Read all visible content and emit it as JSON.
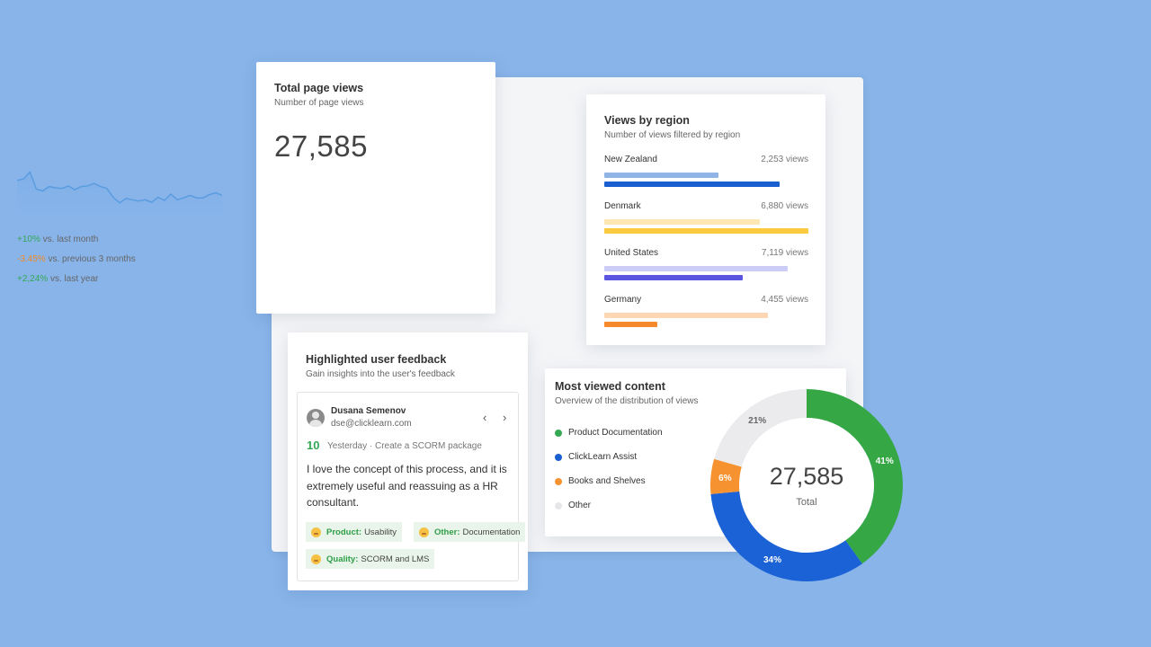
{
  "page_views": {
    "title": "Total page views",
    "subtitle": "Number of page views",
    "total": "27,585",
    "deltas": [
      {
        "value": "+10%",
        "label": "vs. last month",
        "trend": "up"
      },
      {
        "value": "-3.45%",
        "label": "vs. previous 3 months",
        "trend": "down"
      },
      {
        "value": "+2,24%",
        "label": "vs. last year",
        "trend": "up"
      }
    ],
    "sparkline": [
      62,
      64,
      75,
      48,
      45,
      52,
      50,
      49,
      53,
      47,
      52,
      53,
      57,
      52,
      49,
      35,
      26,
      33,
      31,
      29,
      31,
      27,
      35,
      30,
      40,
      31,
      34,
      38,
      34,
      34,
      39,
      42,
      38
    ]
  },
  "regions": {
    "title": "Views by region",
    "subtitle": "Number of views filtered by region",
    "items": [
      {
        "name": "New Zealand",
        "views": "2,253 views",
        "bar1": 0.56,
        "bar2": 0.86,
        "color_light": "#90b4e6",
        "color_dark": "#1a5fd0"
      },
      {
        "name": "Denmark",
        "views": "6,880 views",
        "bar1": 0.76,
        "bar2": 1.0,
        "color_light": "#fde8b3",
        "color_dark": "#fbca3e"
      },
      {
        "name": "United States",
        "views": "7,119 views",
        "bar1": 0.9,
        "bar2": 0.68,
        "color_light": "#cccdf6",
        "color_dark": "#5b55e0"
      },
      {
        "name": "Germany",
        "views": "4,455 views",
        "bar1": 0.8,
        "bar2": 0.26,
        "color_light": "#fdd7b3",
        "color_dark": "#f6892c"
      }
    ]
  },
  "feedback": {
    "title": "Highlighted user feedback",
    "subtitle": "Gain insights into the user's feedback",
    "user_name": "Dusana Semenov",
    "user_email": "dse@clicklearn.com",
    "score": "10",
    "meta": "Yesterday · Create a SCORM package",
    "text": "I love the concept of this process, and it is extremely useful and reassuing as a HR consultant.",
    "prev_icon": "chevron-left-icon",
    "next_icon": "chevron-right-icon",
    "tags": [
      {
        "category": "Product:",
        "value": "Usability"
      },
      {
        "category": "Other:",
        "value": "Documentation"
      },
      {
        "category": "Quality:",
        "value": "SCORM and LMS"
      }
    ]
  },
  "most_viewed": {
    "title": "Most viewed content",
    "subtitle": "Overview of the distribution of views",
    "total": "27,585",
    "total_label": "Total",
    "legend": [
      {
        "name": "Product Documentation",
        "color": "#34a853"
      },
      {
        "name": "ClickLearn Assist",
        "color": "#1a5fd0"
      },
      {
        "name": "Books and Shelves",
        "color": "#f6922f"
      },
      {
        "name": "Other",
        "color": "#e6e6e9"
      }
    ]
  },
  "chart_data": {
    "type": "pie",
    "categories": [
      "Product Documentation",
      "ClickLearn Assist",
      "Books and Shelves",
      "Other"
    ],
    "values": [
      41,
      34,
      6,
      21
    ],
    "labels": [
      "41%",
      "34%",
      "6%",
      "21%"
    ],
    "colors": [
      "#35a845",
      "#1a62d6",
      "#f6922f",
      "#ebebee"
    ]
  }
}
